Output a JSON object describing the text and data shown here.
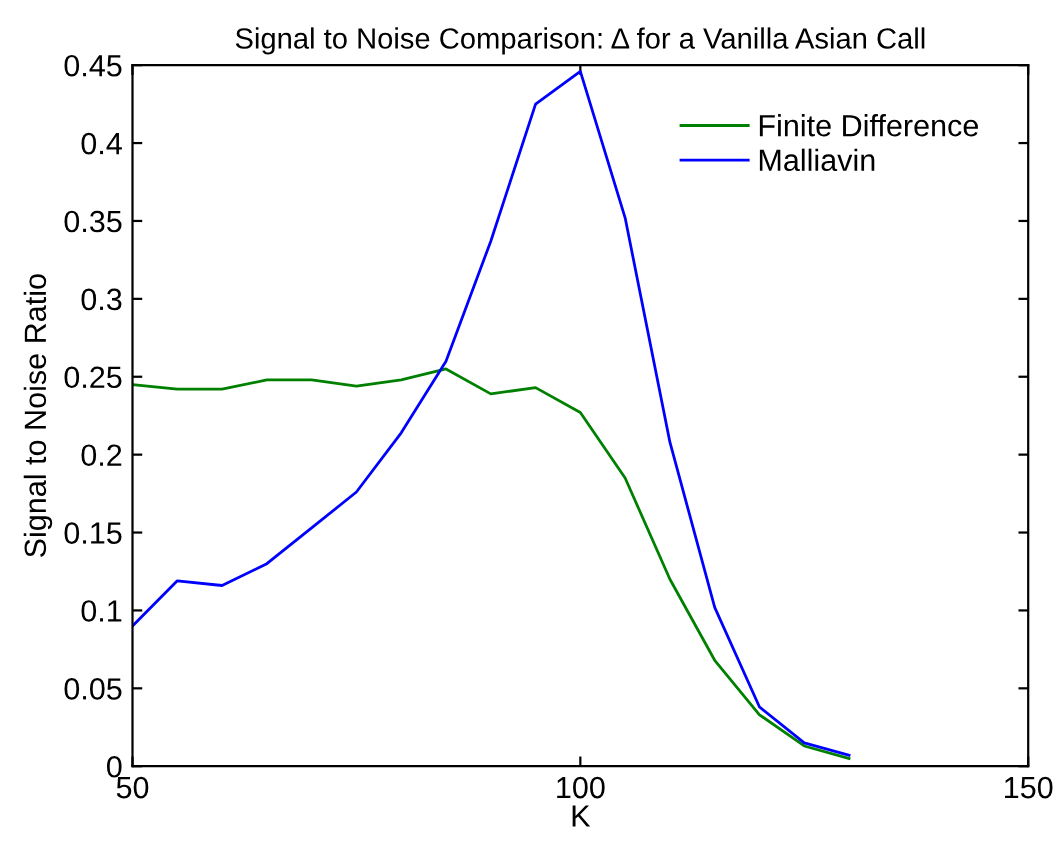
{
  "chart_data": {
    "type": "line",
    "title": "Signal to Noise Comparison: Δ for a Vanilla Asian Call",
    "xlabel": "K",
    "ylabel": "Signal to Noise Ratio",
    "x": [
      50,
      55,
      60,
      65,
      70,
      75,
      80,
      85,
      90,
      95,
      100,
      105,
      110,
      115,
      120,
      125,
      130
    ],
    "series": [
      {
        "name": "Finite Difference",
        "color": "#008000",
        "values": [
          0.245,
          0.242,
          0.242,
          0.248,
          0.248,
          0.244,
          0.248,
          0.255,
          0.239,
          0.243,
          0.227,
          0.185,
          0.12,
          0.068,
          0.033,
          0.013,
          0.005
        ]
      },
      {
        "name": "Malliavin",
        "color": "#0000ff",
        "values": [
          0.09,
          0.119,
          0.116,
          0.13,
          0.153,
          0.176,
          0.214,
          0.26,
          0.337,
          0.425,
          0.446,
          0.352,
          0.208,
          0.102,
          0.038,
          0.015,
          0.007
        ]
      }
    ],
    "xlim": [
      50,
      150
    ],
    "xticks": [
      50,
      100,
      150
    ],
    "ylim": [
      0,
      0.45
    ],
    "yticks": [
      0,
      0.05,
      0.1,
      0.15,
      0.2,
      0.25,
      0.3,
      0.35,
      0.4,
      0.45
    ],
    "grid": false,
    "legend": "top right",
    "marker": "none",
    "line_style": "solid"
  }
}
